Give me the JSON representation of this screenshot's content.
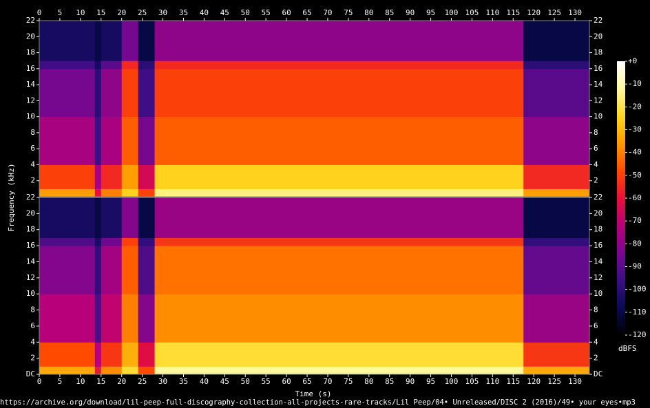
{
  "chart_data": {
    "type": "spectrogram",
    "xlabel": "Time (s)",
    "ylabel": "Frequency (kHz)",
    "colorbar_label": "dBFS",
    "footer": "https://archive.org/download/lil-peep-full-discography-collection-all-projects-rare-tracks/Lil Peep/04• Unreleased/DISC 2 (2016)/49• your eyes•mp3",
    "xlim": [
      0,
      133.5
    ],
    "xticks": [
      0,
      5,
      10,
      15,
      20,
      25,
      30,
      35,
      40,
      45,
      50,
      55,
      60,
      65,
      70,
      75,
      80,
      85,
      90,
      95,
      100,
      105,
      110,
      115,
      120,
      125,
      130
    ],
    "ylim": [
      0,
      22
    ],
    "yticks_upper": [
      2,
      4,
      6,
      8,
      10,
      12,
      14,
      16,
      18,
      20,
      22
    ],
    "yticks_lower": [
      {
        "value": 0,
        "label": "DC"
      },
      2,
      4,
      6,
      8,
      10,
      12,
      14,
      16,
      18,
      20,
      22
    ],
    "clim": [
      -120,
      0
    ],
    "cticks": [
      {
        "value": 0,
        "label": "+0"
      },
      -10,
      -20,
      -30,
      -40,
      -50,
      -60,
      -70,
      -80,
      -90,
      -100,
      -110,
      -120
    ],
    "colormap": [
      "#000000",
      "#0a0a55",
      "#3a0f85",
      "#7a0790",
      "#b8007a",
      "#e8103a",
      "#ff4a00",
      "#ff9a00",
      "#ffd820",
      "#fff8a0",
      "#ffffff"
    ],
    "time_bins": [
      0,
      13.5,
      15,
      20,
      24,
      28,
      117.5,
      133.5
    ],
    "freq_bins": [
      0,
      1,
      4,
      10,
      16,
      17,
      22
    ],
    "channels": [
      {
        "values": [
          [
            -35,
            -60,
            -40,
            -25,
            -50,
            -15,
            -35
          ],
          [
            -50,
            -75,
            -55,
            -35,
            -65,
            -25,
            -55
          ],
          [
            -75,
            -95,
            -75,
            -45,
            -85,
            -45,
            -80
          ],
          [
            -85,
            -100,
            -80,
            -50,
            -95,
            -50,
            -90
          ],
          [
            -95,
            -105,
            -90,
            -55,
            -100,
            -55,
            -100
          ],
          [
            -105,
            -110,
            -105,
            -85,
            -110,
            -80,
            -110
          ]
        ]
      },
      {
        "values": [
          [
            -33,
            -58,
            -38,
            -22,
            -48,
            -12,
            -33
          ],
          [
            -48,
            -72,
            -52,
            -32,
            -62,
            -22,
            -52
          ],
          [
            -72,
            -92,
            -70,
            -40,
            -82,
            -38,
            -78
          ],
          [
            -82,
            -98,
            -76,
            -45,
            -92,
            -42,
            -88
          ],
          [
            -92,
            -104,
            -86,
            -50,
            -98,
            -52,
            -98
          ],
          [
            -105,
            -110,
            -104,
            -82,
            -110,
            -78,
            -110
          ]
        ]
      }
    ]
  }
}
